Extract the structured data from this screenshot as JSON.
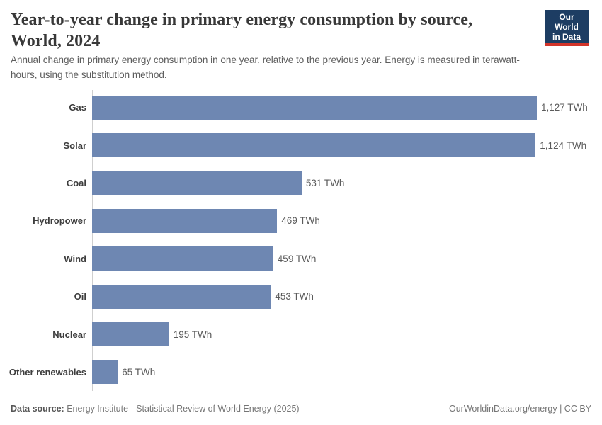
{
  "header": {
    "title_line1": "Year-to-year change in primary energy consumption by source,",
    "title_line2": "World, 2024",
    "subtitle": "Annual change in primary energy consumption in one year, relative to the previous year. Energy is measured in terawatt-hours, using the substitution method.",
    "logo": {
      "line1": "Our World",
      "line2": "in Data"
    }
  },
  "chart_data": {
    "type": "bar",
    "orientation": "horizontal",
    "title": "Year-to-year change in primary energy consumption by source, World, 2024",
    "categories": [
      "Gas",
      "Solar",
      "Coal",
      "Hydropower",
      "Wind",
      "Oil",
      "Nuclear",
      "Other renewables"
    ],
    "values": [
      1127,
      1124,
      531,
      469,
      459,
      453,
      195,
      65
    ],
    "value_labels": [
      "1,127 TWh",
      "1,124 TWh",
      "531 TWh",
      "469 TWh",
      "459 TWh",
      "453 TWh",
      "195 TWh",
      "65 TWh"
    ],
    "unit": "TWh",
    "xlim": [
      0,
      1127
    ],
    "grid": false,
    "legend": "none",
    "bar_color": "#6e87b2"
  },
  "footer": {
    "data_source_label": "Data source:",
    "data_source_text": " Energy Institute - Statistical Review of World Energy (2025)",
    "right_text": "OurWorldinData.org/energy | CC BY"
  },
  "colors": {
    "bar": "#6e87b2",
    "title_text": "#383838",
    "subtitle_text": "#5d5d5d",
    "category_label": "#3d3d3d",
    "value_label": "#5b5b5b",
    "axis_line": "#cfcfcf",
    "logo_background": "#1d3d63",
    "logo_accent": "#d2342a"
  }
}
